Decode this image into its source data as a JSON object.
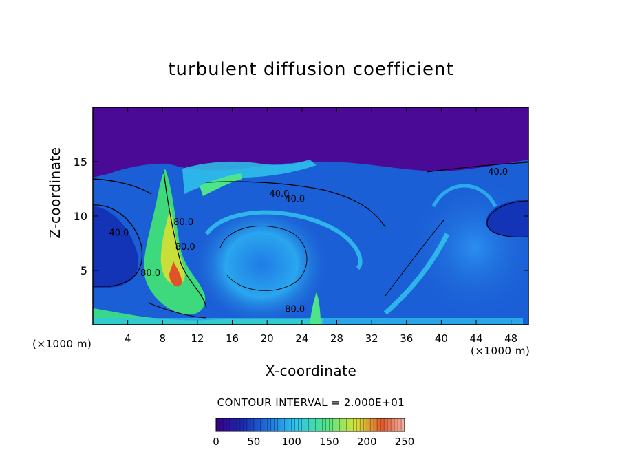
{
  "title": "turbulent diffusion coefficient",
  "xlabel": "X-coordinate",
  "ylabel": "Z-coordinate",
  "x_unit": "(×1000 m)",
  "contour_interval": "CONTOUR INTERVAL = 2.000E+01",
  "chart_data": {
    "type": "heatmap",
    "title": "turbulent diffusion coefficient",
    "xlabel": "X-coordinate",
    "ylabel": "Z-coordinate",
    "x_unit": "(×1000 m)",
    "xlim": [
      0,
      50
    ],
    "ylim": [
      0,
      20
    ],
    "x_ticks": [
      4,
      8,
      12,
      16,
      20,
      24,
      28,
      32,
      36,
      40,
      44,
      48
    ],
    "y_ticks": [
      5,
      10,
      15
    ],
    "contour_labels": [
      {
        "text": "40.0",
        "x": 3.0,
        "y": 8.5
      },
      {
        "text": "40.0",
        "x": 21.4,
        "y": 12.1
      },
      {
        "text": "40.0",
        "x": 23.2,
        "y": 11.6
      },
      {
        "text": "40.0",
        "x": 46.5,
        "y": 14.1
      },
      {
        "text": "80.0",
        "x": 10.4,
        "y": 9.5
      },
      {
        "text": "80.0",
        "x": 10.6,
        "y": 7.2
      },
      {
        "text": "80.0",
        "x": 6.6,
        "y": 4.8
      },
      {
        "text": "80.0",
        "x": 23.2,
        "y": 1.5
      }
    ],
    "colorbar": {
      "ticks": [
        0,
        50,
        100,
        150,
        200,
        250
      ],
      "range": [
        0,
        250
      ],
      "colors": [
        "#3a0088",
        "#1a2ab0",
        "#1e74e0",
        "#2fc4ec",
        "#4ee58a",
        "#d6e23a",
        "#e35a2c",
        "#f2b3a8"
      ]
    },
    "contour_interval": 20.0
  }
}
